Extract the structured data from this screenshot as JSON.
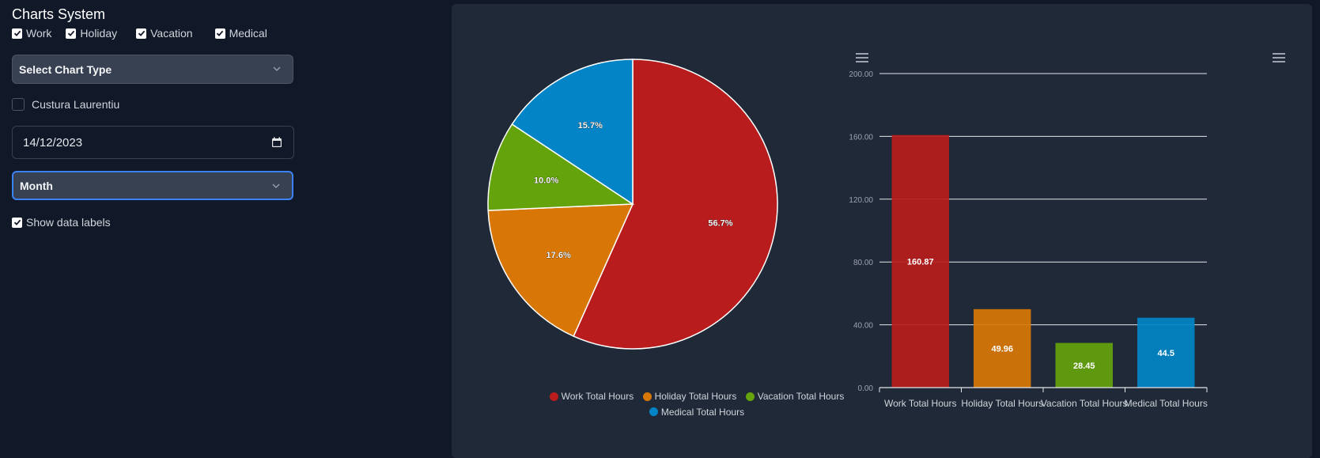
{
  "app": {
    "title": "Charts System"
  },
  "filters": [
    {
      "label": "Work",
      "checked": true
    },
    {
      "label": "Holiday",
      "checked": true
    },
    {
      "label": "Vacation",
      "checked": true
    },
    {
      "label": "Medical",
      "checked": true
    }
  ],
  "chart_type_select": {
    "value": "Select Chart Type"
  },
  "person": {
    "label": "Custura Laurentiu",
    "checked": false
  },
  "date_input": {
    "value": "14/12/2023"
  },
  "period_select": {
    "value": "Month"
  },
  "show_labels": {
    "label": "Show data labels",
    "checked": true
  },
  "colors": {
    "work": "#b91c1c",
    "holiday": "#d97706",
    "vacation": "#65a30d",
    "medical": "#0284c7"
  },
  "icons": {
    "chart_menu": "hamburger-menu-icon",
    "calendar": "calendar-icon",
    "dropdown": "chevron-down-icon",
    "check": "checkmark-icon"
  },
  "chart_data": [
    {
      "type": "pie",
      "slices": [
        {
          "label": "Work Total Hours",
          "value": 56.7,
          "display": "56.7%"
        },
        {
          "label": "Holiday Total Hours",
          "value": 17.6,
          "display": "17.6%"
        },
        {
          "label": "Vacation Total Hours",
          "value": 10.0,
          "display": "10.0%"
        },
        {
          "label": "Medical Total Hours",
          "value": 15.7,
          "display": "15.7%"
        }
      ],
      "legend": [
        "Work Total Hours",
        "Holiday Total Hours",
        "Vacation Total Hours",
        "Medical Total Hours"
      ],
      "legend_position": "bottom"
    },
    {
      "type": "bar",
      "categories": [
        "Work Total Hours",
        "Holiday Total Hours",
        "Vacation Total Hours",
        "Medical Total Hours"
      ],
      "values": [
        160.87,
        49.96,
        28.45,
        44.5
      ],
      "data_labels": [
        "160.87",
        "49.96",
        "28.45",
        "44.5"
      ],
      "ylim": [
        0,
        200
      ],
      "yticks": [
        "0.00",
        "40.00",
        "80.00",
        "120.00",
        "160.00",
        "200.00"
      ],
      "grid": true
    }
  ]
}
